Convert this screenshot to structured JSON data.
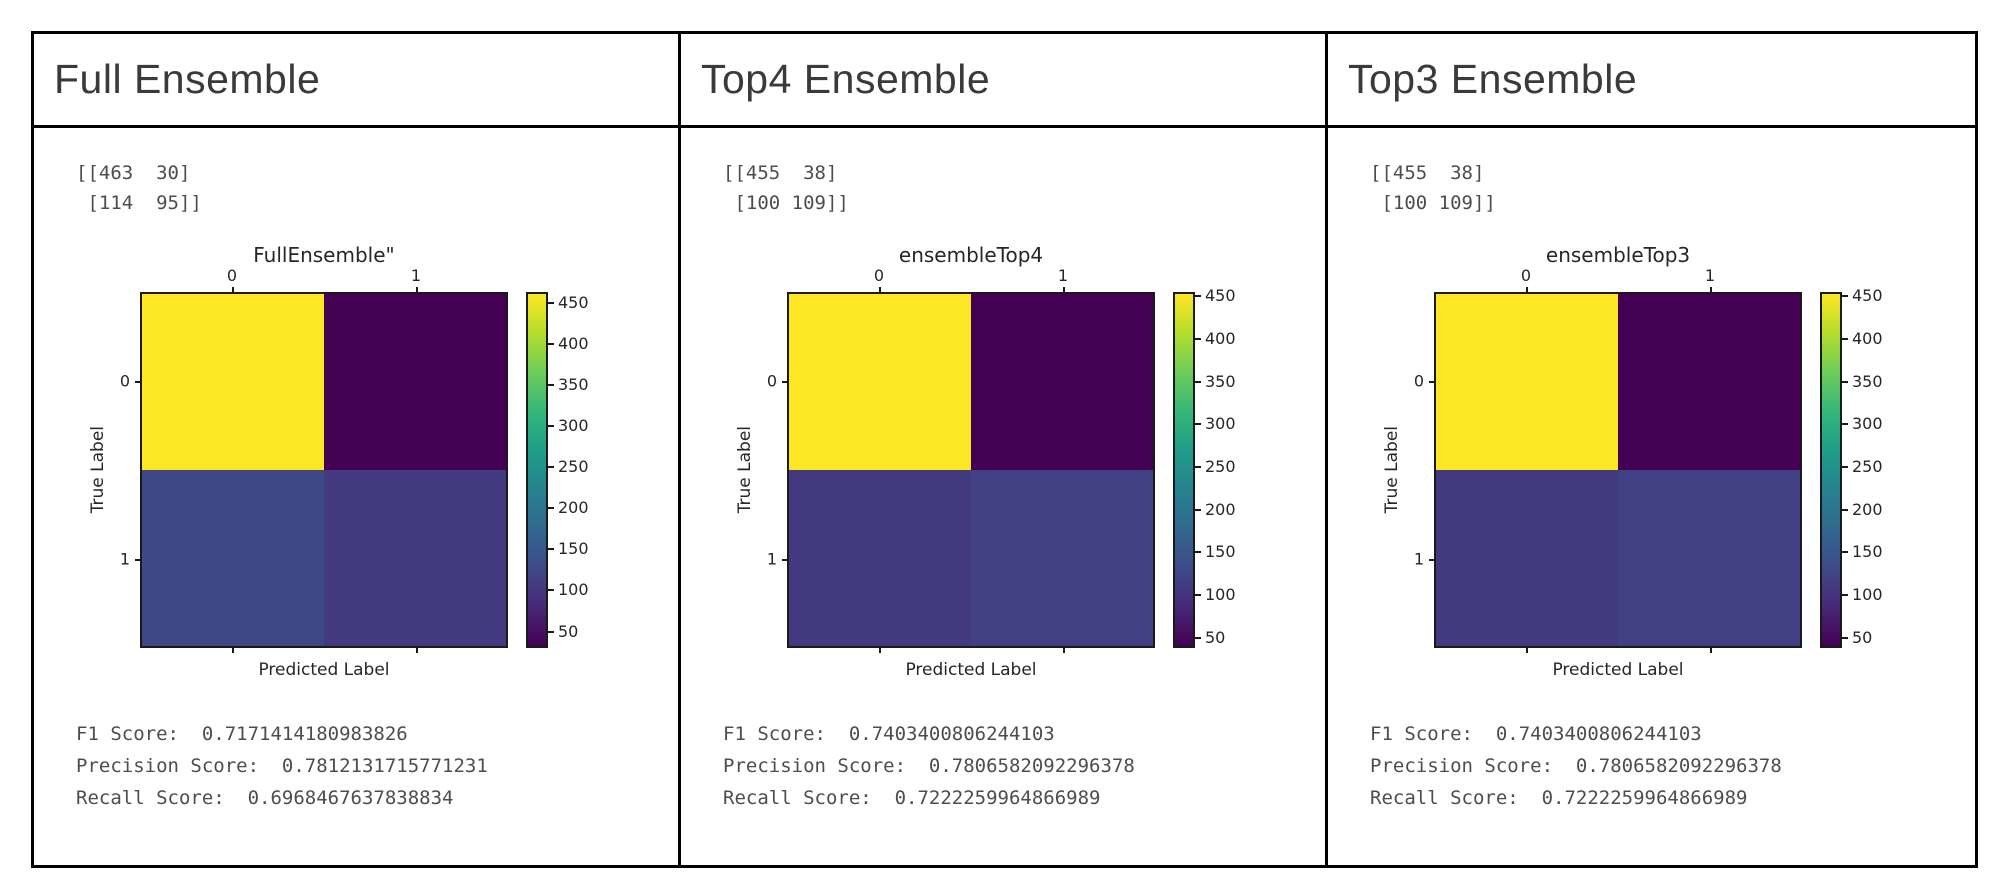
{
  "page": {
    "background": "#ffffff",
    "table_border_color": "#000000"
  },
  "columns": [
    {
      "header": "Full Ensemble",
      "matrix_lines": [
        "[[463  30]",
        " [114  95]]"
      ],
      "scores": [
        {
          "label": "F1 Score:",
          "value": "0.7171414180983826"
        },
        {
          "label": "Precision Score:",
          "value": "0.7812131715771231"
        },
        {
          "label": "Recall Score:",
          "value": "0.6968467637838834"
        }
      ]
    },
    {
      "header": "Top4 Ensemble",
      "matrix_lines": [
        "[[455  38]",
        " [100 109]]"
      ],
      "scores": [
        {
          "label": "F1 Score:",
          "value": "0.7403400806244103"
        },
        {
          "label": "Precision Score:",
          "value": "0.7806582092296378"
        },
        {
          "label": "Recall Score:",
          "value": "0.7222259964866989"
        }
      ]
    },
    {
      "header": "Top3 Ensemble",
      "matrix_lines": [
        "[[455  38]",
        " [100 109]]"
      ],
      "scores": [
        {
          "label": "F1 Score:",
          "value": "0.7403400806244103"
        },
        {
          "label": "Precision Score:",
          "value": "0.7806582092296378"
        },
        {
          "label": "Recall Score:",
          "value": "0.7222259964866989"
        }
      ]
    }
  ],
  "chart_data": [
    {
      "type": "heatmap",
      "title": "FullEnsemble\"",
      "xlabel": "Predicted Label",
      "ylabel": "True Label",
      "x_axis_position": "top",
      "x_tick_labels": [
        "0",
        "1"
      ],
      "y_tick_labels": [
        "0",
        "1"
      ],
      "matrix": [
        [
          463,
          30
        ],
        [
          114,
          95
        ]
      ],
      "vmin": 30,
      "vmax": 463,
      "colormap": "viridis",
      "colorbar_ticks": [
        50,
        100,
        150,
        200,
        250,
        300,
        350,
        400,
        450
      ],
      "cell_colors": [
        [
          "#fde725",
          "#440154"
        ],
        [
          "#3f4887",
          "#433981"
        ]
      ]
    },
    {
      "type": "heatmap",
      "title": "ensembleTop4",
      "xlabel": "Predicted Label",
      "ylabel": "True Label",
      "x_axis_position": "top",
      "x_tick_labels": [
        "0",
        "1"
      ],
      "y_tick_labels": [
        "0",
        "1"
      ],
      "matrix": [
        [
          455,
          38
        ],
        [
          100,
          109
        ]
      ],
      "vmin": 38,
      "vmax": 455,
      "colormap": "viridis",
      "colorbar_ticks": [
        50,
        100,
        150,
        200,
        250,
        300,
        350,
        400,
        450
      ],
      "cell_colors": [
        [
          "#fde725",
          "#440154"
        ],
        [
          "#433981",
          "#414084"
        ]
      ]
    },
    {
      "type": "heatmap",
      "title": "ensembleTop3",
      "xlabel": "Predicted Label",
      "ylabel": "True Label",
      "x_axis_position": "top",
      "x_tick_labels": [
        "0",
        "1"
      ],
      "y_tick_labels": [
        "0",
        "1"
      ],
      "matrix": [
        [
          455,
          38
        ],
        [
          100,
          109
        ]
      ],
      "vmin": 38,
      "vmax": 455,
      "colormap": "viridis",
      "colorbar_ticks": [
        50,
        100,
        150,
        200,
        250,
        300,
        350,
        400,
        450
      ],
      "cell_colors": [
        [
          "#fde725",
          "#440154"
        ],
        [
          "#433981",
          "#414084"
        ]
      ]
    }
  ]
}
